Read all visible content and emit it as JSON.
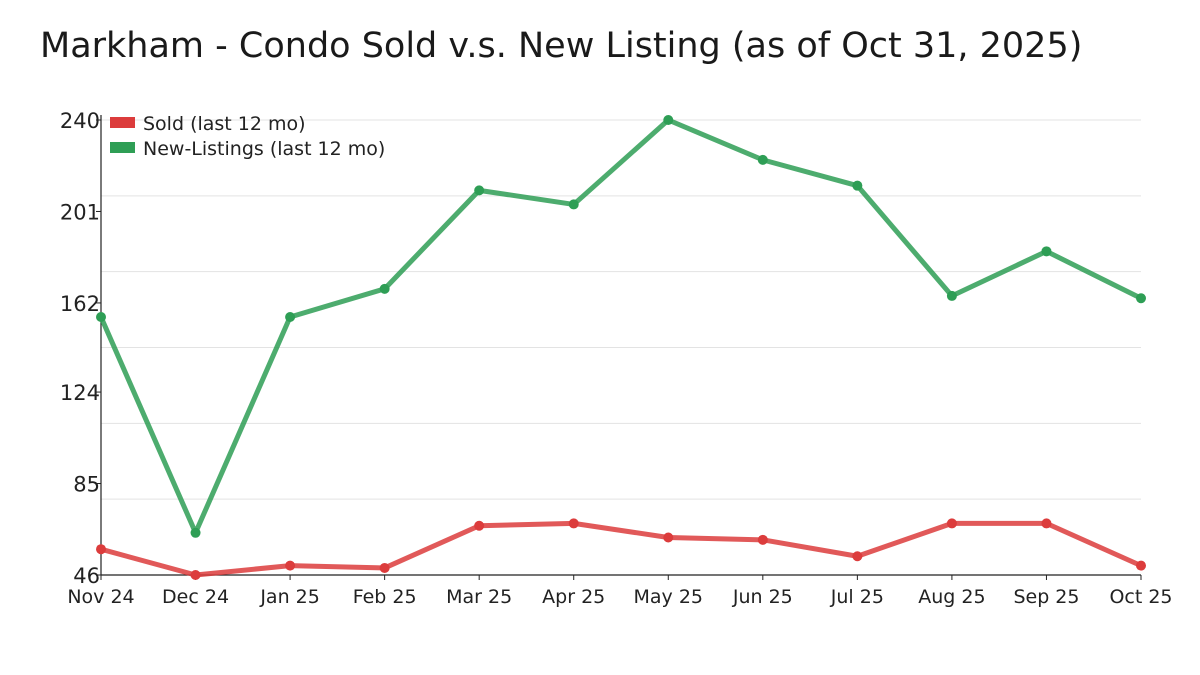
{
  "chart_data": {
    "type": "line",
    "title": "Markham - Condo Sold v.s. New Listing (as of Oct 31, 2025)",
    "xlabel": "",
    "ylabel": "",
    "categories": [
      "Nov 24",
      "Dec 24",
      "Jan 25",
      "Feb 25",
      "Mar 25",
      "Apr 25",
      "May 25",
      "Jun 25",
      "Jul 25",
      "Aug 25",
      "Sep 25",
      "Oct 25"
    ],
    "ylim": [
      46,
      240
    ],
    "yticks": [
      "240",
      "201",
      "162",
      "124",
      "85",
      "46"
    ],
    "grid": true,
    "legend_position": "top-left",
    "series": [
      {
        "name": "Sold (last 12 mo)",
        "color": "#dc3c3c",
        "values": [
          57,
          46,
          50,
          49,
          67,
          68,
          62,
          61,
          54,
          68,
          68,
          50
        ]
      },
      {
        "name": "New-Listings (last 12 mo)",
        "color": "#2e9e55",
        "values": [
          156,
          64,
          156,
          168,
          210,
          204,
          240,
          223,
          212,
          165,
          184,
          164
        ]
      }
    ]
  }
}
